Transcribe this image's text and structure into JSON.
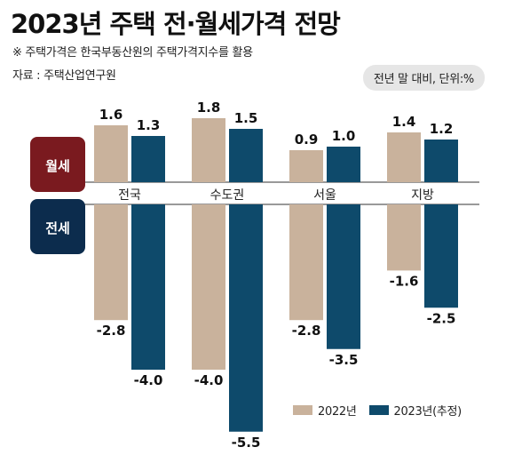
{
  "title": "2023년 주택 전·월세가격 전망",
  "note": "※ 주택가격은 한국부동산원의 주택가격지수를 활용",
  "source": "자료 : 주택산업연구원",
  "unit": "전년 말 대비, 단위:%",
  "colors": {
    "series_2022": "#c9b29c",
    "series_2023": "#0e4a6b",
    "monthly_badge": "#7a1a1f",
    "jeonse_badge": "#0c2c4d"
  },
  "chart_data": [
    {
      "type": "bar",
      "panel": "월세",
      "categories": [
        "전국",
        "수도권",
        "서울",
        "지방"
      ],
      "series": [
        {
          "name": "2022년",
          "values": [
            1.6,
            1.8,
            0.9,
            1.4
          ],
          "labels": [
            "1.6",
            "1.8",
            "0.9",
            "1.4"
          ]
        },
        {
          "name": "2023년(추정)",
          "values": [
            1.3,
            1.5,
            1.0,
            1.2
          ],
          "labels": [
            "1.3",
            "1.5",
            "1.0",
            "1.2"
          ]
        }
      ]
    },
    {
      "type": "bar",
      "panel": "전세",
      "categories": [
        "전국",
        "수도권",
        "서울",
        "지방"
      ],
      "series": [
        {
          "name": "2022년",
          "values": [
            -2.8,
            -4.0,
            -2.8,
            -1.6
          ],
          "labels": [
            "-2.8",
            "-4.0",
            "-2.8",
            "-1.6"
          ]
        },
        {
          "name": "2023년(추정)",
          "values": [
            -4.0,
            -5.5,
            -3.5,
            -2.5
          ],
          "labels": [
            "-4.0",
            "-5.5",
            "-3.5",
            "-2.5"
          ]
        }
      ]
    }
  ]
}
